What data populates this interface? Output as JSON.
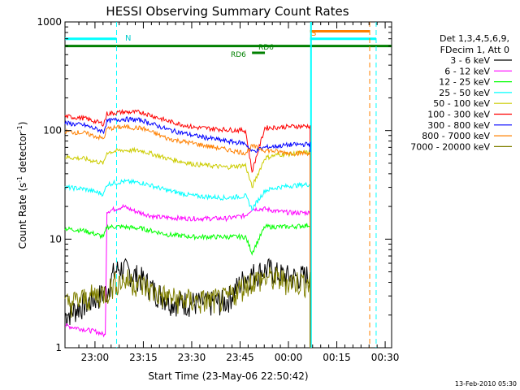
{
  "chart_data": {
    "type": "line",
    "title": "HESSI Observing Summary Count Rates",
    "xlabel": "Start Time (23-May-06 22:50:42)",
    "ylabel_main": "Count Rate (s",
    "ylabel_sup1": "-1",
    "ylabel_mid": " detector",
    "ylabel_sup2": "-1",
    "ylabel_end": ")",
    "yscale": "log",
    "ylim": [
      1,
      1000
    ],
    "y_ticks": [
      "1",
      "10",
      "100",
      "1000"
    ],
    "xlim_minutes": [
      0,
      101.3
    ],
    "x_ticks": [
      {
        "label": "23:00",
        "min": 9.3
      },
      {
        "label": "23:15",
        "min": 24.3
      },
      {
        "label": "23:30",
        "min": 39.3
      },
      {
        "label": "23:45",
        "min": 54.3
      },
      {
        "label": "00:00",
        "min": 69.3
      },
      {
        "label": "00:15",
        "min": 84.3
      },
      {
        "label": "00:30",
        "min": 99.3
      }
    ],
    "legend_header": [
      "Det 1,3,4,5,6,9,",
      "FDecim 1, Att 0"
    ],
    "legend_position": "right",
    "date_stamp": "13-Feb-2010 05:30",
    "series": [
      {
        "name": "3 - 6 keV",
        "color": "#000000",
        "points": [
          [
            0,
            2
          ],
          [
            13,
            3.3
          ],
          [
            15,
            4.8
          ],
          [
            17,
            5.5
          ],
          [
            20,
            5
          ],
          [
            24,
            4.3
          ],
          [
            28,
            3.3
          ],
          [
            33,
            2.7
          ],
          [
            40,
            2.6
          ],
          [
            46,
            2.6
          ],
          [
            50,
            2.7
          ],
          [
            53,
            3.5
          ],
          [
            56,
            4.5
          ],
          [
            60,
            5
          ],
          [
            63,
            5.3
          ],
          [
            66,
            4.8
          ],
          [
            70,
            4.5
          ],
          [
            76,
            4.6
          ]
        ]
      },
      {
        "name": "6 - 12 keV",
        "color": "#ff00ff",
        "points": [
          [
            0,
            1.6
          ],
          [
            10,
            1.4
          ],
          [
            12.5,
            1.3
          ],
          [
            13,
            18
          ],
          [
            18,
            20
          ],
          [
            22,
            18
          ],
          [
            28,
            16
          ],
          [
            38,
            15.5
          ],
          [
            50,
            15.5
          ],
          [
            56,
            16.5
          ],
          [
            58,
            19
          ],
          [
            62,
            19
          ],
          [
            66,
            18
          ],
          [
            70,
            17.5
          ],
          [
            76,
            17.5
          ]
        ]
      },
      {
        "name": "12 - 25 keV",
        "color": "#00ff00",
        "points": [
          [
            0,
            12.5
          ],
          [
            6,
            12
          ],
          [
            12,
            10.5
          ],
          [
            13,
            13
          ],
          [
            18,
            13
          ],
          [
            24,
            12.5
          ],
          [
            32,
            11
          ],
          [
            40,
            10.5
          ],
          [
            50,
            10.5
          ],
          [
            56,
            10.5
          ],
          [
            58,
            7.5
          ],
          [
            62,
            13
          ],
          [
            66,
            13
          ],
          [
            70,
            13
          ],
          [
            76,
            13.5
          ]
        ]
      },
      {
        "name": "25 - 50 keV",
        "color": "#00ffff",
        "points": [
          [
            0,
            30
          ],
          [
            6,
            29
          ],
          [
            12,
            26
          ],
          [
            13,
            32
          ],
          [
            18,
            34
          ],
          [
            24,
            33
          ],
          [
            32,
            28
          ],
          [
            40,
            25
          ],
          [
            50,
            24
          ],
          [
            56,
            25
          ],
          [
            58,
            19
          ],
          [
            62,
            28
          ],
          [
            66,
            30
          ],
          [
            70,
            31
          ],
          [
            76,
            32
          ]
        ]
      },
      {
        "name": "50 - 100 keV",
        "color": "#cccc00",
        "points": [
          [
            0,
            57
          ],
          [
            6,
            55
          ],
          [
            12,
            50
          ],
          [
            13,
            63
          ],
          [
            18,
            66
          ],
          [
            24,
            65
          ],
          [
            32,
            55
          ],
          [
            40,
            49
          ],
          [
            50,
            46
          ],
          [
            56,
            48
          ],
          [
            58,
            30
          ],
          [
            62,
            56
          ],
          [
            66,
            60
          ],
          [
            70,
            61
          ],
          [
            76,
            63
          ]
        ]
      },
      {
        "name": "100 - 300 keV",
        "color": "#ff0000",
        "points": [
          [
            0,
            135
          ],
          [
            6,
            130
          ],
          [
            12,
            115
          ],
          [
            13,
            143
          ],
          [
            18,
            148
          ],
          [
            24,
            147
          ],
          [
            32,
            122
          ],
          [
            40,
            107
          ],
          [
            50,
            102
          ],
          [
            56,
            100
          ],
          [
            58,
            42
          ],
          [
            62,
            106
          ],
          [
            66,
            107
          ],
          [
            70,
            109
          ],
          [
            76,
            110
          ]
        ]
      },
      {
        "name": "300 - 800 keV",
        "color": "#0000ff",
        "points": [
          [
            0,
            117
          ],
          [
            6,
            112
          ],
          [
            12,
            98
          ],
          [
            13,
            122
          ],
          [
            18,
            128
          ],
          [
            24,
            124
          ],
          [
            32,
            102
          ],
          [
            40,
            90
          ],
          [
            50,
            80
          ],
          [
            56,
            76
          ],
          [
            58,
            64
          ],
          [
            62,
            70
          ],
          [
            66,
            72
          ],
          [
            70,
            74
          ],
          [
            76,
            75
          ]
        ]
      },
      {
        "name": "800 - 7000 keV",
        "color": "#ff8000",
        "points": [
          [
            0,
            98
          ],
          [
            6,
            95
          ],
          [
            12,
            84
          ],
          [
            13,
            104
          ],
          [
            18,
            108
          ],
          [
            24,
            105
          ],
          [
            32,
            84
          ],
          [
            40,
            76
          ],
          [
            50,
            67
          ],
          [
            56,
            62
          ],
          [
            58,
            72
          ],
          [
            62,
            66
          ],
          [
            66,
            64
          ],
          [
            70,
            62
          ],
          [
            76,
            62
          ]
        ]
      },
      {
        "name": "7000 - 20000 keV",
        "color": "#808000",
        "points": [
          [
            0,
            2.5
          ],
          [
            13,
            3.3
          ],
          [
            16,
            4.1
          ],
          [
            20,
            4.2
          ],
          [
            24,
            3.8
          ],
          [
            28,
            3.2
          ],
          [
            34,
            2.8
          ],
          [
            42,
            2.7
          ],
          [
            50,
            2.8
          ],
          [
            54,
            3.5
          ],
          [
            58,
            4.2
          ],
          [
            64,
            4.4
          ],
          [
            70,
            4.1
          ],
          [
            76,
            4
          ]
        ]
      }
    ],
    "annotations": {
      "saa_label": "N",
      "night_label": "S",
      "rd_labels": [
        "RD6",
        "RD6"
      ]
    }
  }
}
